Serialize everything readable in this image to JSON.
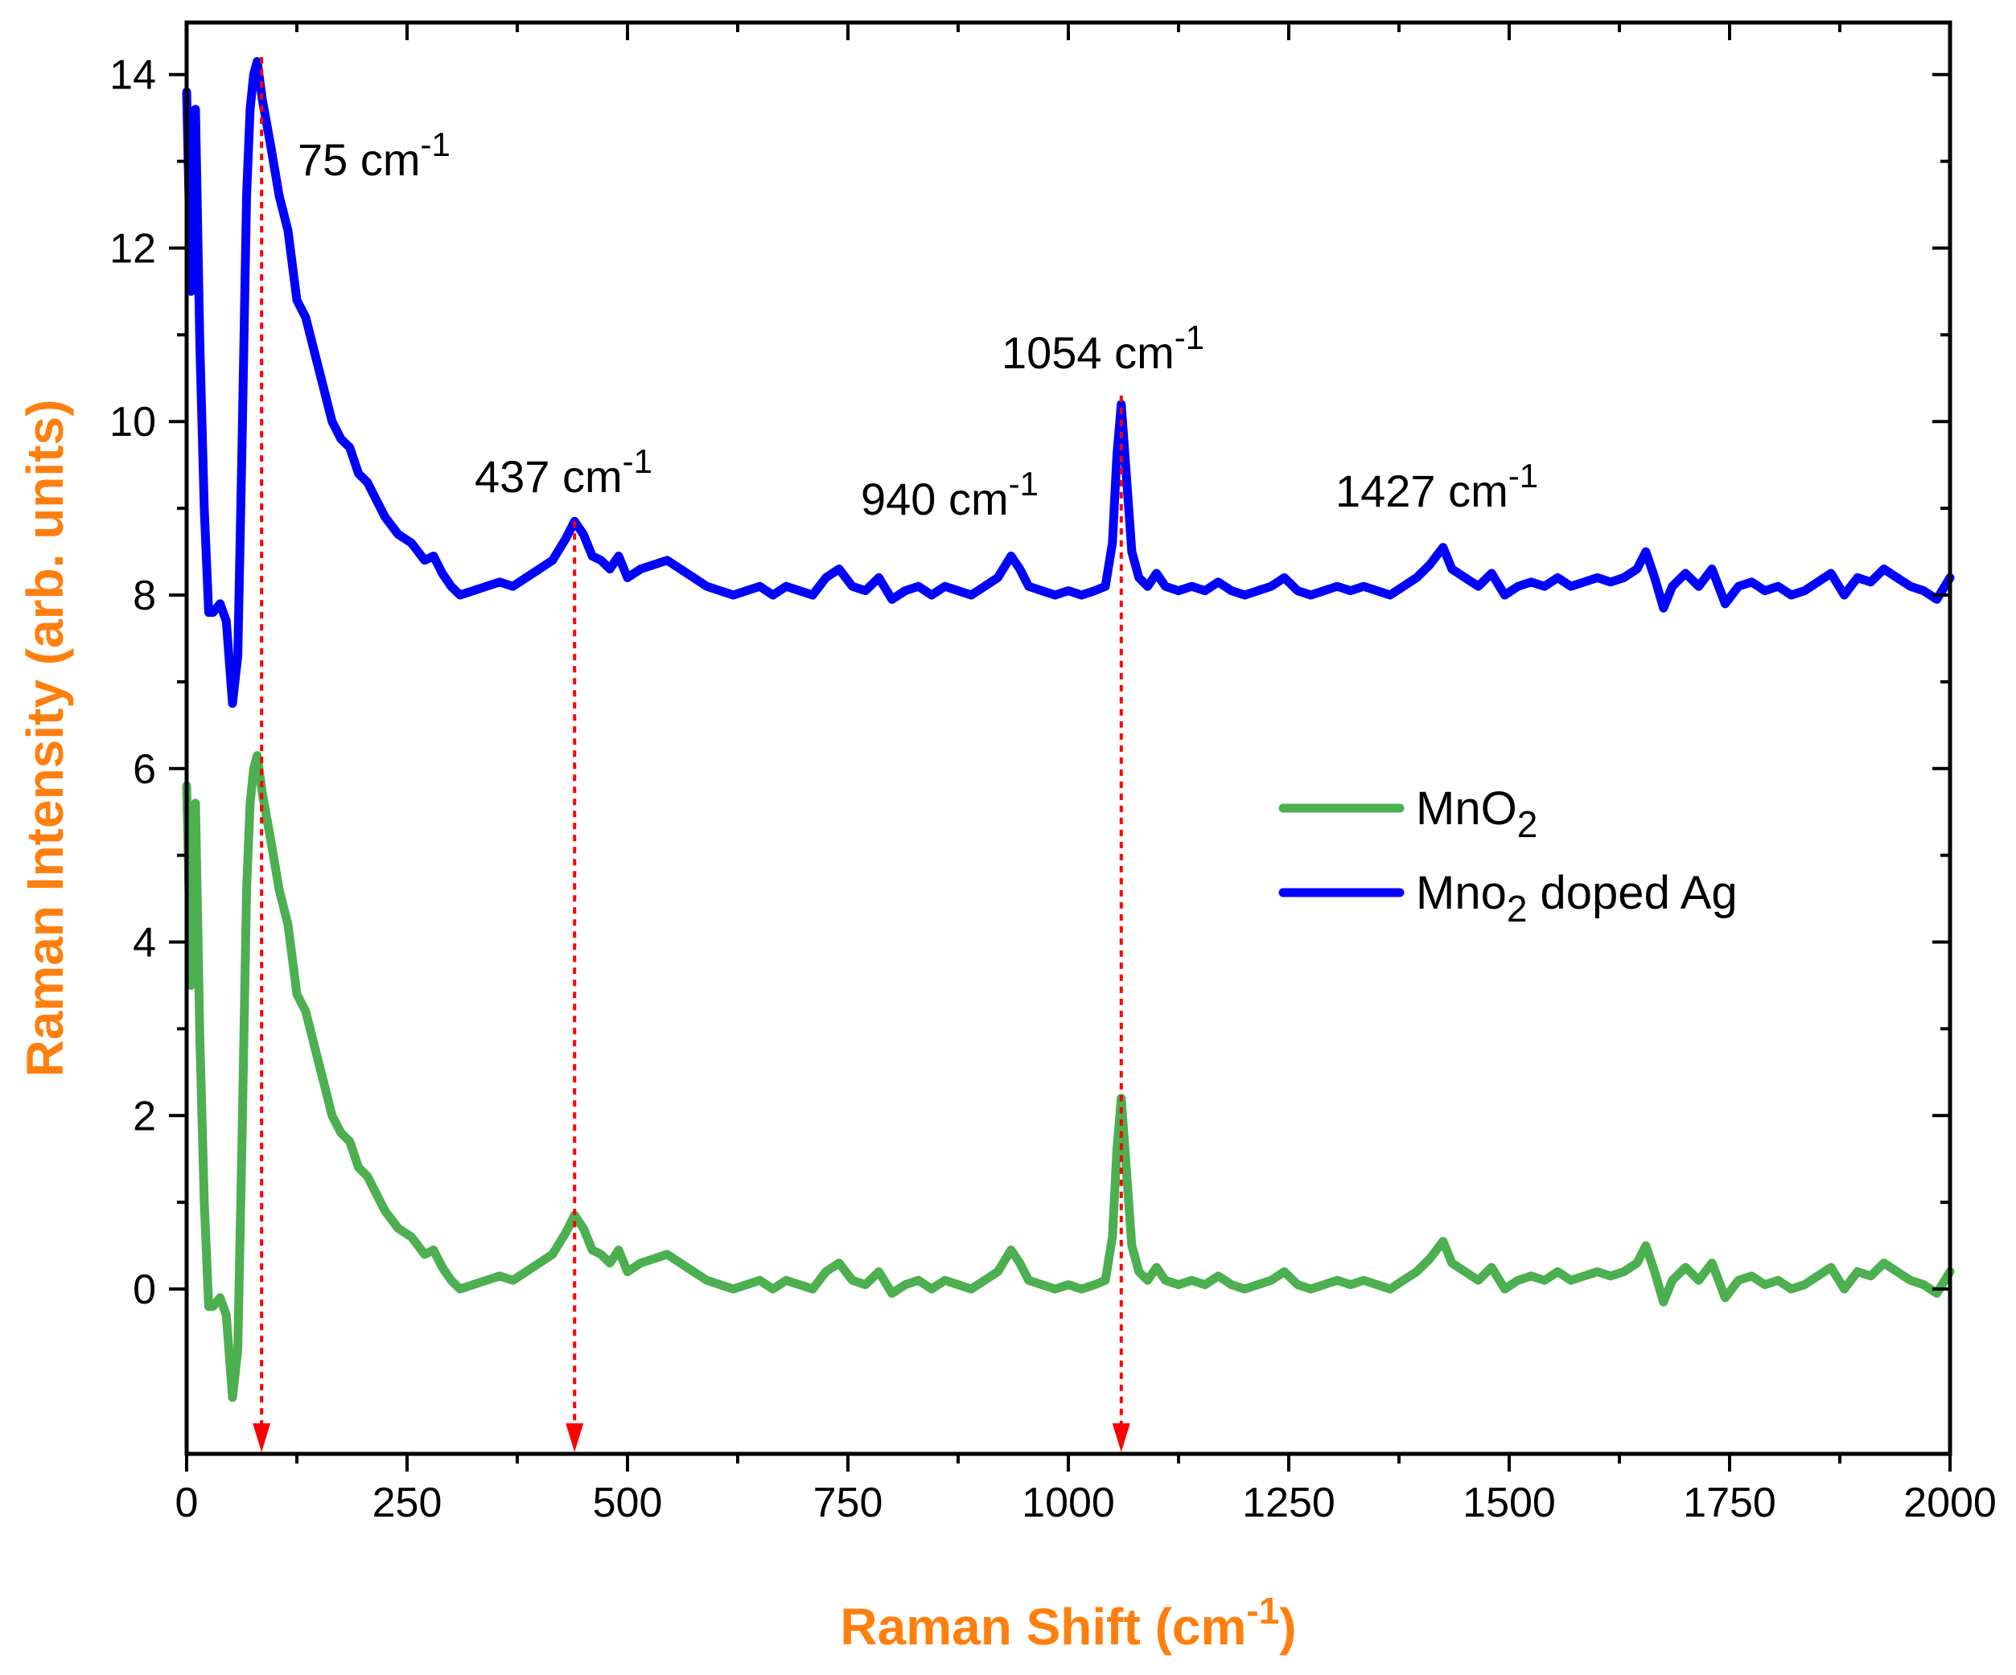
{
  "chart_data": {
    "type": "line",
    "xlabel": "Raman Shift (cm-1)",
    "xlabel_parts": {
      "main": "Raman Shift (cm",
      "sup": "-1",
      "close": ")"
    },
    "ylabel": "Raman Intensity (arb. units)",
    "xlim": [
      0,
      2000
    ],
    "ylim": [
      -1.9,
      14.6
    ],
    "xticks": [
      0,
      250,
      500,
      750,
      1000,
      1250,
      1500,
      1750,
      2000
    ],
    "yticks": [
      0,
      2,
      4,
      6,
      8,
      10,
      12,
      14
    ],
    "label_color": "#FF7F0E",
    "grid": false,
    "legend_position": "center-right",
    "series": [
      {
        "name": "MnO2",
        "legend_main": "MnO",
        "legend_sub": "2",
        "legend_rest": "",
        "color": "#4CAF50",
        "points": [
          [
            0,
            5.8
          ],
          [
            5,
            3.5
          ],
          [
            10,
            5.6
          ],
          [
            15,
            2.9
          ],
          [
            20,
            1.0
          ],
          [
            25,
            -0.2
          ],
          [
            30,
            -0.2
          ],
          [
            38,
            -0.1
          ],
          [
            45,
            -0.3
          ],
          [
            52,
            -1.25
          ],
          [
            58,
            -0.7
          ],
          [
            63,
            1.8
          ],
          [
            68,
            4.6
          ],
          [
            72,
            5.6
          ],
          [
            76,
            6.0
          ],
          [
            80,
            6.15
          ],
          [
            86,
            5.7
          ],
          [
            95,
            5.2
          ],
          [
            105,
            4.6
          ],
          [
            115,
            4.2
          ],
          [
            125,
            3.4
          ],
          [
            135,
            3.2
          ],
          [
            145,
            2.8
          ],
          [
            155,
            2.4
          ],
          [
            165,
            2.0
          ],
          [
            175,
            1.8
          ],
          [
            185,
            1.7
          ],
          [
            195,
            1.4
          ],
          [
            205,
            1.3
          ],
          [
            215,
            1.1
          ],
          [
            225,
            0.9
          ],
          [
            240,
            0.7
          ],
          [
            255,
            0.6
          ],
          [
            270,
            0.4
          ],
          [
            280,
            0.45
          ],
          [
            290,
            0.25
          ],
          [
            300,
            0.1
          ],
          [
            310,
            0.0
          ],
          [
            325,
            0.05
          ],
          [
            340,
            0.1
          ],
          [
            355,
            0.15
          ],
          [
            370,
            0.1
          ],
          [
            385,
            0.2
          ],
          [
            400,
            0.3
          ],
          [
            415,
            0.4
          ],
          [
            430,
            0.65
          ],
          [
            440,
            0.85
          ],
          [
            450,
            0.7
          ],
          [
            460,
            0.45
          ],
          [
            470,
            0.4
          ],
          [
            480,
            0.3
          ],
          [
            490,
            0.45
          ],
          [
            500,
            0.2
          ],
          [
            515,
            0.3
          ],
          [
            530,
            0.35
          ],
          [
            545,
            0.4
          ],
          [
            560,
            0.3
          ],
          [
            575,
            0.2
          ],
          [
            590,
            0.1
          ],
          [
            605,
            0.05
          ],
          [
            620,
            0.0
          ],
          [
            635,
            0.05
          ],
          [
            650,
            0.1
          ],
          [
            665,
            0.0
          ],
          [
            680,
            0.1
          ],
          [
            695,
            0.05
          ],
          [
            710,
            0.0
          ],
          [
            725,
            0.2
          ],
          [
            740,
            0.3
          ],
          [
            755,
            0.1
          ],
          [
            770,
            0.05
          ],
          [
            785,
            0.2
          ],
          [
            800,
            -0.05
          ],
          [
            815,
            0.05
          ],
          [
            830,
            0.1
          ],
          [
            845,
            0.0
          ],
          [
            860,
            0.1
          ],
          [
            875,
            0.05
          ],
          [
            890,
            0.0
          ],
          [
            905,
            0.1
          ],
          [
            920,
            0.2
          ],
          [
            935,
            0.45
          ],
          [
            945,
            0.3
          ],
          [
            955,
            0.1
          ],
          [
            970,
            0.05
          ],
          [
            985,
            0.0
          ],
          [
            1000,
            0.05
          ],
          [
            1015,
            0.0
          ],
          [
            1030,
            0.05
          ],
          [
            1042,
            0.1
          ],
          [
            1050,
            0.6
          ],
          [
            1055,
            1.6
          ],
          [
            1060,
            2.2
          ],
          [
            1065,
            1.5
          ],
          [
            1072,
            0.5
          ],
          [
            1080,
            0.2
          ],
          [
            1090,
            0.1
          ],
          [
            1100,
            0.25
          ],
          [
            1110,
            0.1
          ],
          [
            1125,
            0.05
          ],
          [
            1140,
            0.1
          ],
          [
            1155,
            0.05
          ],
          [
            1170,
            0.15
          ],
          [
            1185,
            0.05
          ],
          [
            1200,
            0.0
          ],
          [
            1215,
            0.05
          ],
          [
            1230,
            0.1
          ],
          [
            1245,
            0.2
          ],
          [
            1260,
            0.05
          ],
          [
            1275,
            0.0
          ],
          [
            1290,
            0.05
          ],
          [
            1305,
            0.1
          ],
          [
            1320,
            0.05
          ],
          [
            1335,
            0.1
          ],
          [
            1350,
            0.05
          ],
          [
            1365,
            0.0
          ],
          [
            1380,
            0.1
          ],
          [
            1395,
            0.2
          ],
          [
            1410,
            0.35
          ],
          [
            1425,
            0.55
          ],
          [
            1435,
            0.3
          ],
          [
            1450,
            0.2
          ],
          [
            1465,
            0.1
          ],
          [
            1480,
            0.25
          ],
          [
            1495,
            0.0
          ],
          [
            1510,
            0.1
          ],
          [
            1525,
            0.15
          ],
          [
            1540,
            0.1
          ],
          [
            1555,
            0.2
          ],
          [
            1570,
            0.1
          ],
          [
            1585,
            0.15
          ],
          [
            1600,
            0.2
          ],
          [
            1615,
            0.15
          ],
          [
            1630,
            0.2
          ],
          [
            1645,
            0.3
          ],
          [
            1655,
            0.5
          ],
          [
            1665,
            0.2
          ],
          [
            1675,
            -0.15
          ],
          [
            1685,
            0.1
          ],
          [
            1700,
            0.25
          ],
          [
            1715,
            0.1
          ],
          [
            1730,
            0.3
          ],
          [
            1745,
            -0.1
          ],
          [
            1760,
            0.1
          ],
          [
            1775,
            0.15
          ],
          [
            1790,
            0.05
          ],
          [
            1805,
            0.1
          ],
          [
            1820,
            0.0
          ],
          [
            1835,
            0.05
          ],
          [
            1850,
            0.15
          ],
          [
            1865,
            0.25
          ],
          [
            1880,
            0.0
          ],
          [
            1895,
            0.2
          ],
          [
            1910,
            0.15
          ],
          [
            1925,
            0.3
          ],
          [
            1940,
            0.2
          ],
          [
            1955,
            0.1
          ],
          [
            1970,
            0.05
          ],
          [
            1985,
            -0.05
          ],
          [
            2000,
            0.2
          ]
        ]
      },
      {
        "name": "Mno2 doped Ag",
        "legend_main": "Mno",
        "legend_sub": "2",
        "legend_rest": " doped Ag",
        "color": "#0000FF",
        "offset_from": "MnO2",
        "offset": 8.0
      }
    ],
    "peaks": [
      {
        "x": 75,
        "label_main": "75 cm",
        "label_sup": "-1",
        "arrow": true,
        "arrow_x": 85
      },
      {
        "x": 437,
        "label_main": "437 cm",
        "label_sup": "-1",
        "arrow": true,
        "arrow_x": 440
      },
      {
        "x": 940,
        "label_main": "940 cm",
        "label_sup": "-1",
        "arrow": false
      },
      {
        "x": 1054,
        "label_main": "1054 cm",
        "label_sup": "-1",
        "arrow": true,
        "arrow_x": 1060
      },
      {
        "x": 1427,
        "label_main": "1427 cm",
        "label_sup": "-1",
        "arrow": false
      }
    ]
  }
}
